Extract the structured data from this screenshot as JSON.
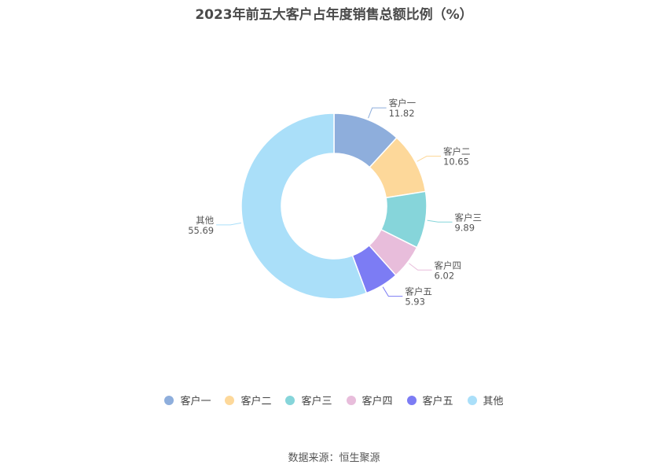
{
  "chart_data": {
    "type": "pie",
    "donut": true,
    "title": "2023年前五大客户占年度销售总额比例（%）",
    "categories": [
      "客户一",
      "客户二",
      "客户三",
      "客户四",
      "客户五",
      "其他"
    ],
    "values": [
      11.82,
      10.65,
      9.89,
      6.02,
      5.93,
      55.69
    ],
    "value_labels": [
      "11.82",
      "10.65",
      "9.89",
      "6.02",
      "5.93",
      "55.69"
    ],
    "colors": [
      "#8eaedc",
      "#fdd89a",
      "#86d5da",
      "#e8bddb",
      "#7c7cf4",
      "#aadff9"
    ],
    "legend_position": "bottom"
  },
  "source": "数据来源：恒生聚源"
}
